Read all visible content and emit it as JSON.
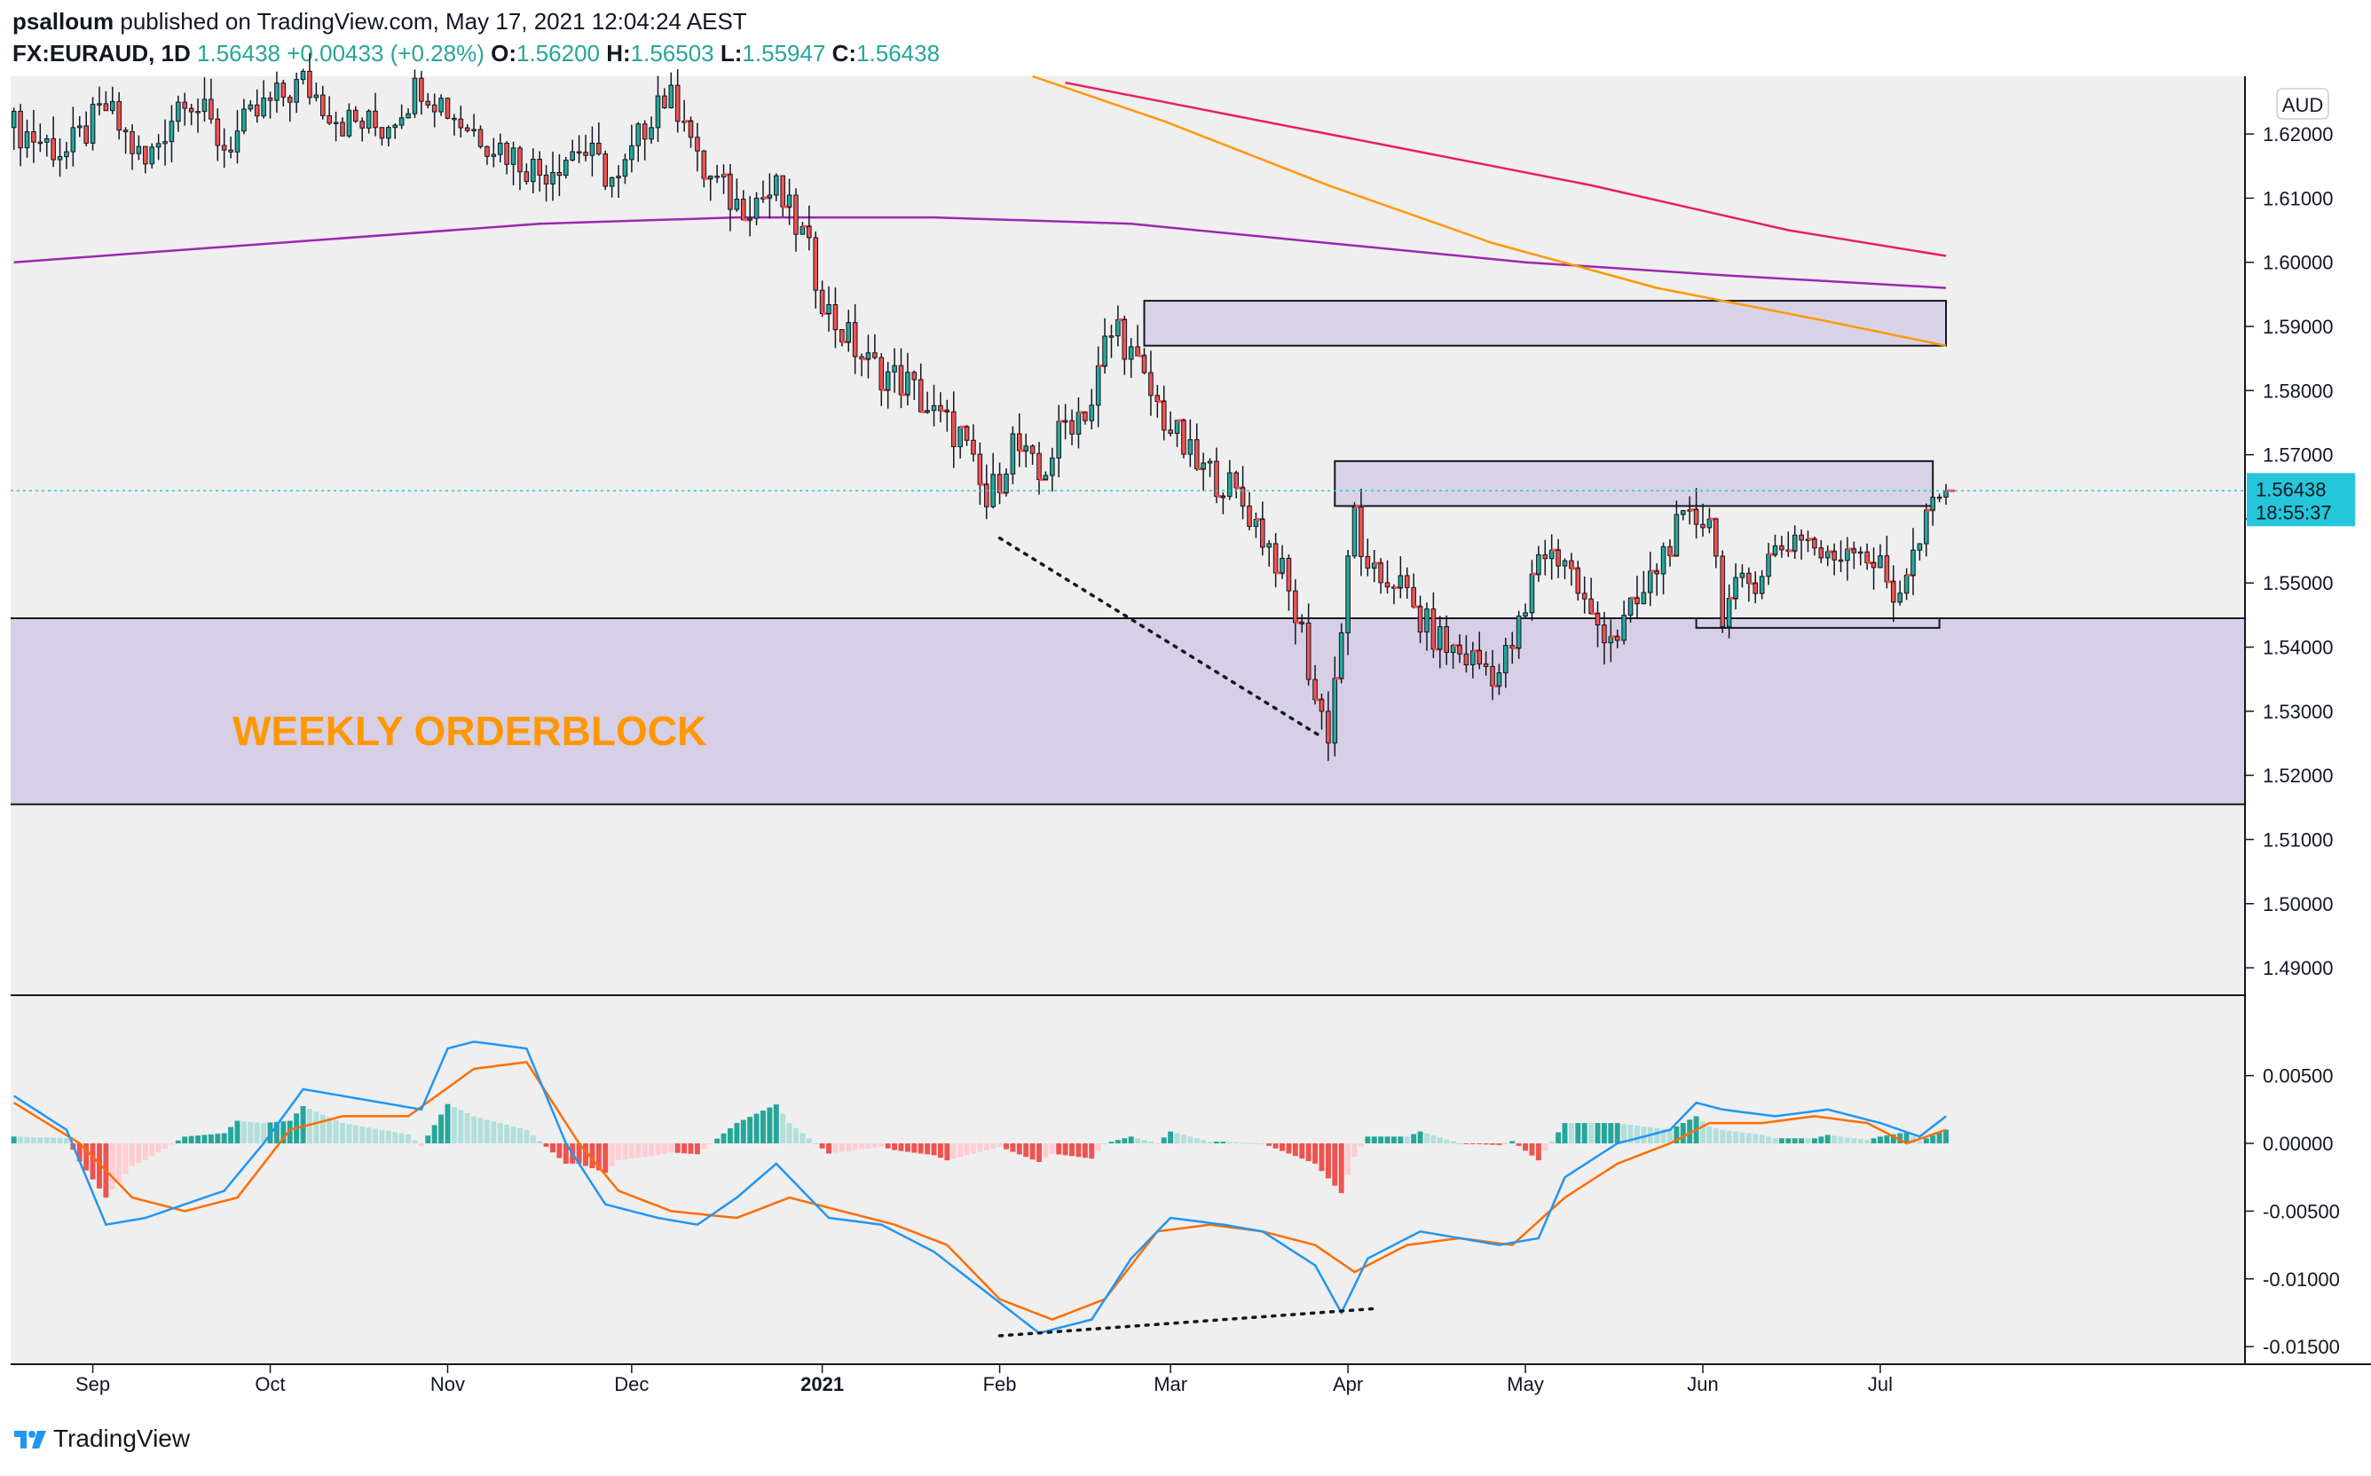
{
  "header": {
    "author": "psalloum",
    "published": "published on TradingView.com, May 17, 2021 12:04:24 AEST",
    "symbol": "FX:EURAUD, 1D",
    "last": "1.56438",
    "change": "+0.00433 (+0.28%)",
    "o_label": "O:",
    "o": "1.56200",
    "h_label": "H:",
    "h": "1.56503",
    "l_label": "L:",
    "l": "1.55947",
    "c_label": "C:",
    "c": "1.56438"
  },
  "currency_badge": "AUD",
  "price_tag": {
    "price": "1.56438",
    "countdown": "18:55:37"
  },
  "annotation": "WEEKLY ORDERBLOCK",
  "brand": "TradingView",
  "colors": {
    "up": "#26a69a",
    "down": "#ef5350",
    "zone": "#d6cfe6",
    "ma_purple": "#9c27b0",
    "ma_pink": "#e91e63",
    "ma_orange": "#ff9800",
    "macd": "#2196f3",
    "signal": "#ff6d00",
    "tag": "#26c6da"
  },
  "chart_data": {
    "type": "candlestick",
    "x_ticks": [
      "Sep",
      "Oct",
      "Nov",
      "Dec",
      "2021",
      "Feb",
      "Mar",
      "Apr",
      "May",
      "Jun",
      "Jul"
    ],
    "price_axis": {
      "ticks": [
        "1.49000",
        "1.50000",
        "1.51000",
        "1.52000",
        "1.53000",
        "1.54000",
        "1.55000",
        "1.56000",
        "1.57000",
        "1.58000",
        "1.59000",
        "1.60000",
        "1.61000",
        "1.62000"
      ],
      "range": [
        1.486,
        1.629
      ]
    },
    "price_path": [
      [
        0,
        1.621
      ],
      [
        8,
        1.617
      ],
      [
        14,
        1.624
      ],
      [
        20,
        1.615
      ],
      [
        26,
        1.627
      ],
      [
        32,
        1.618
      ],
      [
        38,
        1.624
      ],
      [
        44,
        1.628
      ],
      [
        50,
        1.622
      ],
      [
        56,
        1.621
      ],
      [
        62,
        1.628
      ],
      [
        68,
        1.622
      ],
      [
        74,
        1.618
      ],
      [
        80,
        1.614
      ],
      [
        86,
        1.618
      ],
      [
        92,
        1.612
      ],
      [
        98,
        1.626
      ],
      [
        102,
        1.624
      ],
      [
        104,
        1.615
      ],
      [
        110,
        1.609
      ],
      [
        116,
        1.611
      ],
      [
        120,
        1.604
      ],
      [
        124,
        1.592
      ],
      [
        130,
        1.584
      ],
      [
        136,
        1.581
      ],
      [
        140,
        1.576
      ],
      [
        144,
        1.573
      ],
      [
        148,
        1.562
      ],
      [
        152,
        1.572
      ],
      [
        156,
        1.566
      ],
      [
        160,
        1.575
      ],
      [
        164,
        1.578
      ],
      [
        166,
        1.587
      ],
      [
        168,
        1.59
      ],
      [
        172,
        1.581
      ],
      [
        176,
        1.574
      ],
      [
        180,
        1.568
      ],
      [
        184,
        1.566
      ],
      [
        188,
        1.561
      ],
      [
        192,
        1.554
      ],
      [
        196,
        1.542
      ],
      [
        198,
        1.532
      ],
      [
        200,
        1.527
      ],
      [
        202,
        1.543
      ],
      [
        204,
        1.561
      ],
      [
        206,
        1.55
      ],
      [
        210,
        1.551
      ],
      [
        214,
        1.544
      ],
      [
        218,
        1.54
      ],
      [
        222,
        1.538
      ],
      [
        226,
        1.536
      ],
      [
        230,
        1.545
      ],
      [
        232,
        1.555
      ],
      [
        236,
        1.554
      ],
      [
        240,
        1.544
      ],
      [
        244,
        1.542
      ],
      [
        248,
        1.548
      ],
      [
        252,
        1.557
      ],
      [
        256,
        1.56
      ],
      [
        258,
        1.561
      ],
      [
        260,
        1.546
      ],
      [
        264,
        1.55
      ],
      [
        268,
        1.555
      ],
      [
        272,
        1.558
      ],
      [
        276,
        1.553
      ],
      [
        280,
        1.557
      ],
      [
        284,
        1.552
      ],
      [
        286,
        1.548
      ],
      [
        290,
        1.556
      ],
      [
        292,
        1.562
      ],
      [
        294,
        1.564
      ]
    ],
    "moving_averages": [
      {
        "color": "#9c27b0",
        "points": [
          [
            0,
            1.6
          ],
          [
            40,
            1.603
          ],
          [
            80,
            1.606
          ],
          [
            110,
            1.607
          ],
          [
            140,
            1.607
          ],
          [
            170,
            1.606
          ],
          [
            200,
            1.603
          ],
          [
            230,
            1.6
          ],
          [
            260,
            1.598
          ],
          [
            294,
            1.596
          ]
        ]
      },
      {
        "color": "#e91e63",
        "points": [
          [
            160,
            1.628
          ],
          [
            180,
            1.624
          ],
          [
            210,
            1.618
          ],
          [
            240,
            1.612
          ],
          [
            270,
            1.605
          ],
          [
            294,
            1.601
          ]
        ]
      },
      {
        "color": "#ff9800",
        "points": [
          [
            155,
            1.629
          ],
          [
            175,
            1.622
          ],
          [
            200,
            1.612
          ],
          [
            225,
            1.603
          ],
          [
            250,
            1.596
          ],
          [
            275,
            1.591
          ],
          [
            294,
            1.587
          ]
        ]
      }
    ],
    "zones": [
      {
        "x_start": 172,
        "x_end": 294,
        "low": 1.587,
        "high": 1.594
      },
      {
        "x_start": 201,
        "x_end": 292,
        "low": 1.562,
        "high": 1.569
      },
      {
        "x_start": 256,
        "x_end": 293,
        "low": 1.543,
        "high": 1.5445
      }
    ],
    "weekly_orderblock": {
      "low": 1.5155,
      "high": 1.5445
    },
    "last_price": 1.56438,
    "macd": {
      "axis_ticks": [
        "0.00500",
        "0.00000",
        "-0.00500",
        "-0.01000",
        "-0.01500"
      ],
      "range": [
        -0.0163,
        0.0108
      ],
      "macd_path": [
        [
          0,
          0.0035
        ],
        [
          8,
          0.001
        ],
        [
          14,
          -0.006
        ],
        [
          20,
          -0.0055
        ],
        [
          26,
          -0.0045
        ],
        [
          32,
          -0.0035
        ],
        [
          38,
          0.0
        ],
        [
          44,
          0.004
        ],
        [
          50,
          0.0035
        ],
        [
          56,
          0.003
        ],
        [
          62,
          0.0025
        ],
        [
          66,
          0.007
        ],
        [
          70,
          0.0075
        ],
        [
          78,
          0.007
        ],
        [
          84,
          0.0
        ],
        [
          90,
          -0.0045
        ],
        [
          98,
          -0.0055
        ],
        [
          104,
          -0.006
        ],
        [
          110,
          -0.004
        ],
        [
          116,
          -0.0015
        ],
        [
          124,
          -0.0055
        ],
        [
          132,
          -0.006
        ],
        [
          140,
          -0.008
        ],
        [
          148,
          -0.011
        ],
        [
          156,
          -0.014
        ],
        [
          164,
          -0.013
        ],
        [
          170,
          -0.0085
        ],
        [
          176,
          -0.0055
        ],
        [
          184,
          -0.006
        ],
        [
          190,
          -0.0065
        ],
        [
          198,
          -0.009
        ],
        [
          202,
          -0.0125
        ],
        [
          206,
          -0.0085
        ],
        [
          214,
          -0.0065
        ],
        [
          220,
          -0.007
        ],
        [
          226,
          -0.0075
        ],
        [
          232,
          -0.007
        ],
        [
          236,
          -0.0025
        ],
        [
          244,
          0.0
        ],
        [
          252,
          0.001
        ],
        [
          256,
          0.003
        ],
        [
          260,
          0.0025
        ],
        [
          268,
          0.002
        ],
        [
          276,
          0.0025
        ],
        [
          284,
          0.0015
        ],
        [
          290,
          0.0005
        ],
        [
          294,
          0.002
        ]
      ],
      "signal_path": [
        [
          0,
          0.003
        ],
        [
          10,
          0.0
        ],
        [
          18,
          -0.004
        ],
        [
          26,
          -0.005
        ],
        [
          34,
          -0.004
        ],
        [
          42,
          0.001
        ],
        [
          50,
          0.002
        ],
        [
          60,
          0.002
        ],
        [
          70,
          0.0055
        ],
        [
          78,
          0.006
        ],
        [
          86,
          0.0
        ],
        [
          92,
          -0.0035
        ],
        [
          100,
          -0.005
        ],
        [
          110,
          -0.0055
        ],
        [
          118,
          -0.004
        ],
        [
          126,
          -0.005
        ],
        [
          134,
          -0.006
        ],
        [
          142,
          -0.0075
        ],
        [
          150,
          -0.0115
        ],
        [
          158,
          -0.013
        ],
        [
          166,
          -0.0115
        ],
        [
          174,
          -0.0065
        ],
        [
          182,
          -0.006
        ],
        [
          190,
          -0.0065
        ],
        [
          198,
          -0.0075
        ],
        [
          204,
          -0.0095
        ],
        [
          212,
          -0.0075
        ],
        [
          220,
          -0.007
        ],
        [
          228,
          -0.0075
        ],
        [
          236,
          -0.004
        ],
        [
          244,
          -0.0015
        ],
        [
          252,
          0.0
        ],
        [
          258,
          0.0015
        ],
        [
          266,
          0.0015
        ],
        [
          274,
          0.002
        ],
        [
          282,
          0.0015
        ],
        [
          288,
          0.0
        ],
        [
          294,
          0.001
        ]
      ],
      "divergence": [
        [
          150,
          1.557
        ],
        [
          199,
          1.526
        ]
      ],
      "macd_divergence": [
        [
          150,
          -0.0142
        ],
        [
          207,
          -0.0122
        ]
      ]
    }
  }
}
